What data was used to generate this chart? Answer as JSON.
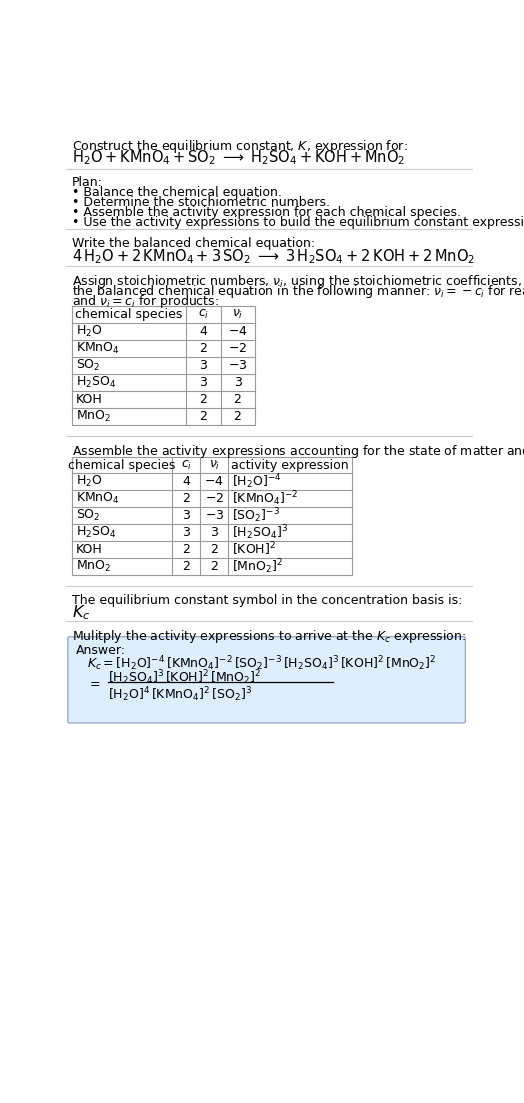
{
  "title_line1": "Construct the equilibrium constant, $K$, expression for:",
  "title_line2": "$\\mathrm{H_2O + KMnO_4 + SO_2 \\;\\longrightarrow\\; H_2SO_4 + KOH + MnO_2}$",
  "plan_header": "Plan:",
  "plan_items": [
    "• Balance the chemical equation.",
    "• Determine the stoichiometric numbers.",
    "• Assemble the activity expression for each chemical species.",
    "• Use the activity expressions to build the equilibrium constant expression."
  ],
  "balanced_header": "Write the balanced chemical equation:",
  "balanced_eq": "$\\mathrm{4\\,H_2O + 2\\,KMnO_4 + 3\\,SO_2 \\;\\longrightarrow\\; 3\\,H_2SO_4 + 2\\,KOH + 2\\,MnO_2}$",
  "stoich_intro": "Assign stoichiometric numbers, $\\nu_i$, using the stoichiometric coefficients, $c_i$, from\nthe balanced chemical equation in the following manner: $\\nu_i = -c_i$ for reactants\nand $\\nu_i = c_i$ for products:",
  "table1_col_headers": [
    "chemical species",
    "$c_i$",
    "$\\nu_i$"
  ],
  "table1_rows": [
    [
      "$\\mathrm{H_2O}$",
      "4",
      "$-4$"
    ],
    [
      "$\\mathrm{KMnO_4}$",
      "2",
      "$-2$"
    ],
    [
      "$\\mathrm{SO_2}$",
      "3",
      "$-3$"
    ],
    [
      "$\\mathrm{H_2SO_4}$",
      "3",
      "3"
    ],
    [
      "KOH",
      "2",
      "2"
    ],
    [
      "$\\mathrm{MnO_2}$",
      "2",
      "2"
    ]
  ],
  "activity_intro": "Assemble the activity expressions accounting for the state of matter and $\\nu_i$:",
  "table2_col_headers": [
    "chemical species",
    "$c_i$",
    "$\\nu_i$",
    "activity expression"
  ],
  "table2_rows": [
    [
      "$\\mathrm{H_2O}$",
      "4",
      "$-4$",
      "$[\\mathrm{H_2O}]^{-4}$"
    ],
    [
      "$\\mathrm{KMnO_4}$",
      "2",
      "$-2$",
      "$[\\mathrm{KMnO_4}]^{-2}$"
    ],
    [
      "$\\mathrm{SO_2}$",
      "3",
      "$-3$",
      "$[\\mathrm{SO_2}]^{-3}$"
    ],
    [
      "$\\mathrm{H_2SO_4}$",
      "3",
      "3",
      "$[\\mathrm{H_2SO_4}]^{3}$"
    ],
    [
      "KOH",
      "2",
      "2",
      "$[\\mathrm{KOH}]^{2}$"
    ],
    [
      "$\\mathrm{MnO_2}$",
      "2",
      "2",
      "$[\\mathrm{MnO_2}]^{2}$"
    ]
  ],
  "kc_intro": "The equilibrium constant symbol in the concentration basis is:",
  "kc_symbol": "$K_c$",
  "multiply_intro": "Mulitply the activity expressions to arrive at the $K_c$ expression:",
  "answer_label": "Answer:",
  "answer_line1": "$K_c = [\\mathrm{H_2O}]^{-4}\\,[\\mathrm{KMnO_4}]^{-2}\\,[\\mathrm{SO_2}]^{-3}\\,[\\mathrm{H_2SO_4}]^{3}\\,[\\mathrm{KOH}]^{2}\\,[\\mathrm{MnO_2}]^{2}$",
  "answer_line2a": "$[\\mathrm{H_2SO_4}]^{3}\\,[\\mathrm{KOH}]^{2}\\,[\\mathrm{MnO_2}]^{2}$",
  "answer_line2b": "$[\\mathrm{H_2O}]^{4}\\,[\\mathrm{KMnO_4}]^{2}\\,[\\mathrm{SO_2}]^{3}$",
  "bg_color": "#ffffff",
  "answer_box_bg": "#ddeeff",
  "answer_box_edge": "#99aacc",
  "sep_color": "#cccccc",
  "table_line_color": "#999999",
  "fs": 9.0,
  "fs_eq": 10.5
}
